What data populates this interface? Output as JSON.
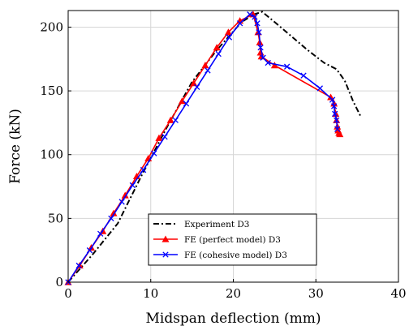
{
  "chart_data": {
    "type": "line",
    "xlabel": "Midspan deflection (mm)",
    "ylabel": "Force (kN)",
    "xlim": [
      0,
      40
    ],
    "ylim": [
      0,
      213
    ],
    "x_ticks": [
      "0",
      "10",
      "20",
      "30",
      "40"
    ],
    "y_ticks": [
      "0",
      "50",
      "100",
      "150",
      "200"
    ],
    "grid": true,
    "legend_position": "bottom-right",
    "series": [
      {
        "name": "Experiment D3",
        "color": "#000000",
        "style": "dash-dot",
        "marker": "none",
        "x": [
          0,
          3,
          6,
          9,
          12,
          15,
          18,
          21,
          22.5,
          23.5,
          25,
          27,
          29,
          31,
          32.5,
          33.5,
          34.5,
          35.5
        ],
        "y": [
          0,
          22,
          46,
          85,
          122,
          157,
          182,
          204,
          210,
          212,
          204,
          193,
          182,
          172,
          167,
          158,
          142,
          129
        ]
      },
      {
        "name": "FE (perfect model) D3",
        "color": "#ff0000",
        "style": "solid",
        "marker": "triangle",
        "x": [
          0,
          1.4,
          2.8,
          4.2,
          5.5,
          6.9,
          8.3,
          9.7,
          11.0,
          12.4,
          13.8,
          15.2,
          16.6,
          18.0,
          19.4,
          20.8,
          22.4,
          23.0,
          23.2,
          23.3,
          23.4,
          25.0,
          31.8,
          32.2,
          32.4,
          32.5,
          32.6,
          32.7,
          32.8,
          32.9
        ],
        "y": [
          0,
          13,
          27,
          40,
          54,
          68,
          83,
          97,
          113,
          127,
          142,
          156,
          170,
          184,
          196,
          205,
          210,
          196,
          188,
          180,
          177,
          170,
          145,
          140,
          132,
          127,
          122,
          119,
          117,
          116
        ]
      },
      {
        "name": "FE (cohesive model) D3",
        "color": "#0000ff",
        "style": "solid",
        "marker": "x",
        "x": [
          0,
          1.3,
          2.6,
          3.9,
          5.2,
          6.5,
          7.8,
          9.1,
          10.4,
          11.7,
          13.0,
          14.3,
          15.6,
          16.9,
          18.2,
          19.5,
          20.8,
          22.0,
          22.6,
          22.9,
          23.1,
          23.3,
          23.6,
          24.2,
          26.5,
          28.5,
          30.5,
          32.0,
          32.2,
          32.3,
          32.5,
          32.6
        ],
        "y": [
          0,
          13,
          25,
          38,
          50,
          63,
          76,
          88,
          101,
          114,
          127,
          140,
          153,
          166,
          179,
          192,
          203,
          210,
          208,
          203,
          196,
          184,
          176,
          172,
          169,
          162,
          152,
          143,
          138,
          132,
          127,
          120
        ]
      }
    ]
  }
}
